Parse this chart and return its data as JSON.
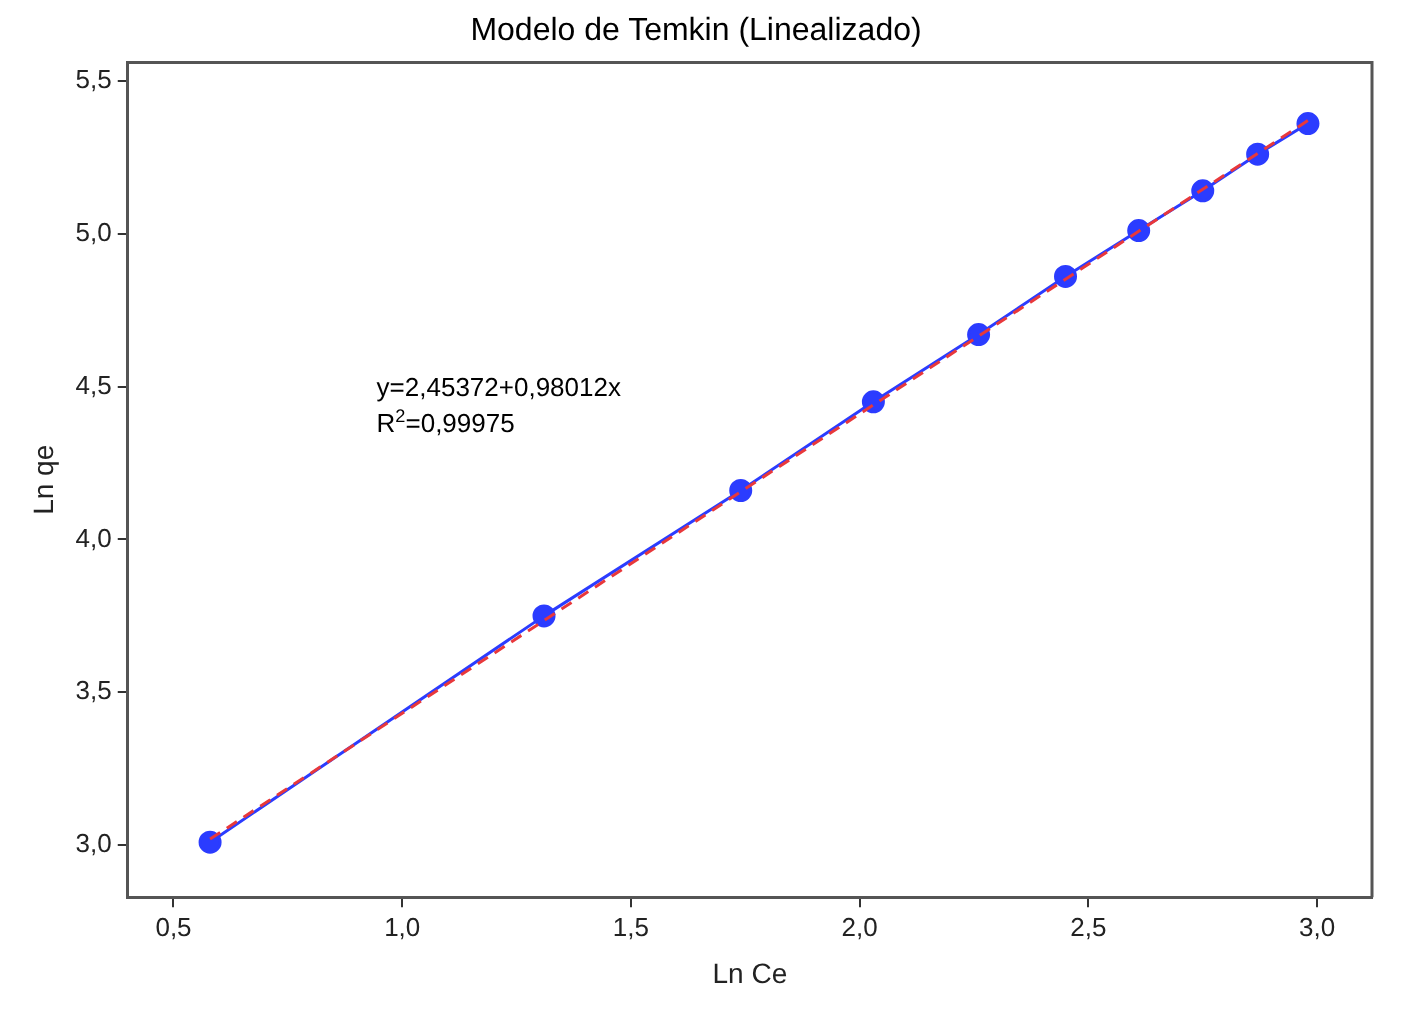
{
  "chart_data": {
    "type": "line",
    "title": "Modelo de Temkin (Linealizado)",
    "xlabel": "Ln Ce",
    "ylabel": "Ln qe",
    "annotations": [
      "y=2,45372+0,98012x",
      "R$^{2}$=0,99975"
    ],
    "series": [
      {
        "color": "#2b3cff",
        "marker": "circle",
        "line_style": "solid",
        "x": [
          0.58,
          1.31,
          1.74,
          2.03,
          2.26,
          2.45,
          2.61,
          2.75,
          2.87,
          2.98
        ],
        "values": [
          3.01,
          3.75,
          4.16,
          4.45,
          4.67,
          4.86,
          5.01,
          5.14,
          5.26,
          5.36
        ]
      },
      {
        "color": "#e8383b",
        "marker": "none",
        "line_style": "dashed",
        "x": [
          0.58,
          2.98
        ],
        "values": [
          3.02,
          5.37
        ]
      }
    ],
    "xlim": [
      0.4,
      3.12
    ],
    "xticks": [
      {
        "value": 0.5,
        "label": "0,5"
      },
      {
        "value": 1,
        "label": "1,0"
      },
      {
        "value": 1.5,
        "label": "1,5"
      },
      {
        "value": 2,
        "label": "2,0"
      },
      {
        "value": 2.5,
        "label": "2,5"
      },
      {
        "value": 3,
        "label": "3,0"
      }
    ],
    "ylim": [
      2.83,
      5.56
    ],
    "yticks": [
      {
        "value": 3,
        "label": "3,0"
      },
      {
        "value": 3.5,
        "label": "3,5"
      },
      {
        "value": 4,
        "label": "4,0"
      },
      {
        "value": 4.5,
        "label": "4,5"
      },
      {
        "value": 5,
        "label": "5,0"
      },
      {
        "value": 5.5,
        "label": "5,5"
      }
    ],
    "grid": false,
    "legend": false
  }
}
